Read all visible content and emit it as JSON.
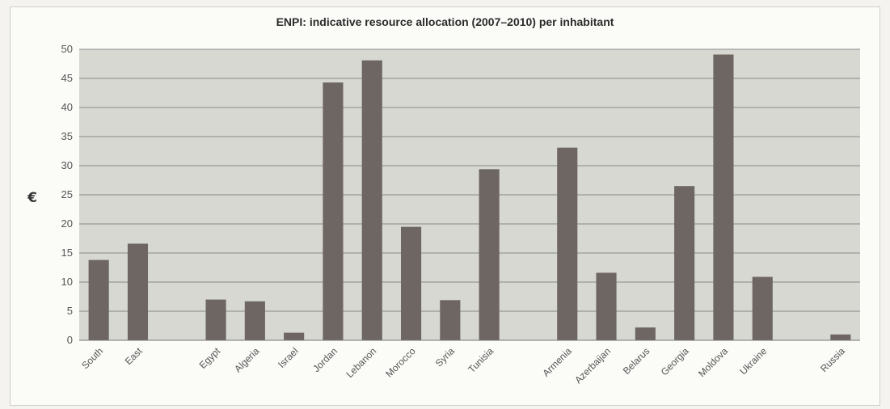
{
  "chart_data": {
    "type": "bar",
    "title": "ENPI: indicative resource allocation (2007–2010) per inhabitant",
    "ylabel": "€",
    "xlabel": "",
    "ylim": [
      0,
      50
    ],
    "yticks": [
      0,
      5,
      10,
      15,
      20,
      25,
      30,
      35,
      40,
      45,
      50
    ],
    "grid": true,
    "categories": [
      "South",
      "East",
      "",
      "Egypt",
      "Algeria",
      "Israel",
      "Jordan",
      "Lebanon",
      "Morocco",
      "Syria",
      "Tunisia",
      "",
      "Armenia",
      "Azerbaijan",
      "Belarus",
      "Georgia",
      "Moldova",
      "Ukraine",
      "",
      "Russia"
    ],
    "values": [
      13.8,
      16.6,
      null,
      7.0,
      6.7,
      1.3,
      44.3,
      48.1,
      19.5,
      6.9,
      29.4,
      null,
      33.1,
      11.6,
      2.2,
      26.5,
      49.1,
      10.9,
      null,
      1.0
    ],
    "colors": {
      "bar": "#6e6663",
      "plot_bg": "#d6d8d1",
      "grid": "#8a8a8a"
    }
  }
}
